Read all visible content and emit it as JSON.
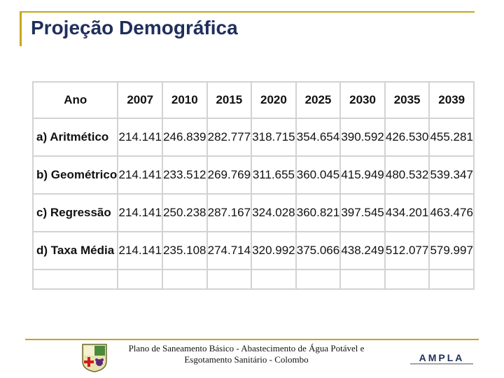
{
  "title": "Projeção Demográfica",
  "table": {
    "headers": [
      "Ano",
      "2007",
      "2010",
      "2015",
      "2020",
      "2025",
      "2030",
      "2035",
      "2039"
    ],
    "rows": [
      {
        "label": "a) Aritmético",
        "values": [
          "214.141",
          "246.839",
          "282.777",
          "318.715",
          "354.654",
          "390.592",
          "426.530",
          "455.281"
        ]
      },
      {
        "label": "b) Geométrico",
        "values": [
          "214.141",
          "233.512",
          "269.769",
          "311.655",
          "360.045",
          "415.949",
          "480.532",
          "539.347"
        ]
      },
      {
        "label": "c) Regressão",
        "values": [
          "214.141",
          "250.238",
          "287.167",
          "324.028",
          "360.821",
          "397.545",
          "434.201",
          "463.476"
        ]
      },
      {
        "label": "d) Taxa Média",
        "values": [
          "214.141",
          "235.108",
          "274.714",
          "320.992",
          "375.066",
          "438.249",
          "512.077",
          "579.997"
        ]
      }
    ]
  },
  "footer": {
    "line1": "Plano de Saneamento Básico - Abastecimento de Água Potável e",
    "line2": "Esgotamento Sanitário - Colombo",
    "logo_right_text": "AMPLA",
    "logo_left_icon": "municipal-coat-of-arms-icon"
  },
  "colors": {
    "title": "#1f2f5c",
    "accent_gold": "#c8a51a",
    "grid": "#d2d2d2"
  }
}
